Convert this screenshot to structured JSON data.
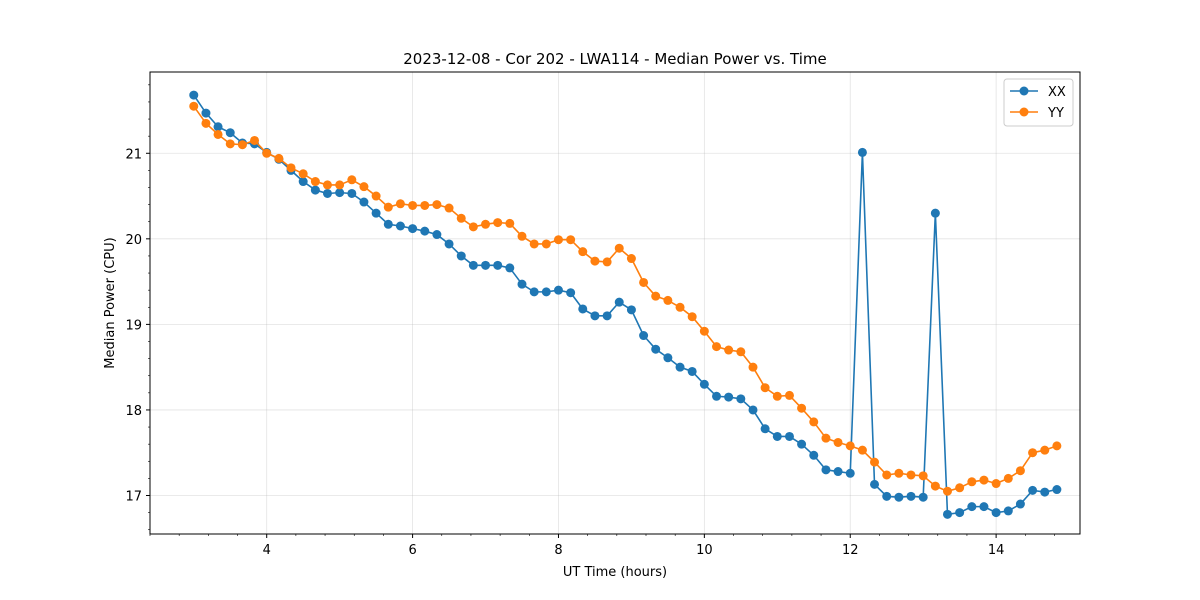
{
  "chart_data": {
    "type": "line",
    "title": "2023-12-08 - Cor 202 - LWA114 - Median Power vs. Time",
    "xlabel": "UT Time (hours)",
    "ylabel": "Median Power (CPU)",
    "xlim": [
      2.4,
      15.15
    ],
    "ylim": [
      16.55,
      21.95
    ],
    "xticks": [
      4,
      6,
      8,
      10,
      12,
      14
    ],
    "yticks": [
      17,
      18,
      19,
      20,
      21
    ],
    "grid": true,
    "legend_position": "top-right",
    "x": [
      3.0,
      3.167,
      3.333,
      3.5,
      3.667,
      3.833,
      4.0,
      4.167,
      4.333,
      4.5,
      4.667,
      4.833,
      5.0,
      5.167,
      5.333,
      5.5,
      5.667,
      5.833,
      6.0,
      6.167,
      6.333,
      6.5,
      6.667,
      6.833,
      7.0,
      7.167,
      7.333,
      7.5,
      7.667,
      7.833,
      8.0,
      8.167,
      8.333,
      8.5,
      8.667,
      8.833,
      9.0,
      9.167,
      9.333,
      9.5,
      9.667,
      9.833,
      10.0,
      10.167,
      10.333,
      10.5,
      10.667,
      10.833,
      11.0,
      11.167,
      11.333,
      11.5,
      11.667,
      11.833,
      12.0,
      12.167,
      12.333,
      12.5,
      12.667,
      12.833,
      13.0,
      13.167,
      13.333,
      13.5,
      13.667,
      13.833,
      14.0,
      14.167,
      14.333,
      14.5,
      14.667,
      14.833
    ],
    "series": [
      {
        "name": "XX",
        "color": "#1f77b4",
        "values": [
          21.68,
          21.47,
          21.31,
          21.24,
          21.12,
          21.11,
          21.01,
          20.93,
          20.8,
          20.67,
          20.57,
          20.53,
          20.54,
          20.53,
          20.43,
          20.3,
          20.17,
          20.15,
          20.12,
          20.09,
          20.05,
          19.94,
          19.8,
          19.69,
          19.69,
          19.69,
          19.66,
          19.47,
          19.38,
          19.38,
          19.4,
          19.37,
          19.18,
          19.1,
          19.1,
          19.26,
          19.17,
          18.87,
          18.71,
          18.61,
          18.5,
          18.45,
          18.3,
          18.16,
          18.15,
          18.13,
          18.0,
          17.78,
          17.69,
          17.69,
          17.6,
          17.47,
          17.3,
          17.28,
          17.26,
          21.01,
          17.13,
          16.99,
          16.98,
          16.99,
          16.98,
          20.3,
          16.78,
          16.8,
          16.87,
          16.87,
          16.8,
          16.82,
          16.9,
          17.06,
          17.04,
          17.07
        ]
      },
      {
        "name": "YY",
        "color": "#ff7f0e",
        "values": [
          21.55,
          21.35,
          21.22,
          21.11,
          21.1,
          21.15,
          21.0,
          20.94,
          20.83,
          20.76,
          20.67,
          20.63,
          20.63,
          20.69,
          20.61,
          20.5,
          20.37,
          20.41,
          20.39,
          20.39,
          20.4,
          20.36,
          20.24,
          20.14,
          20.17,
          20.19,
          20.18,
          20.03,
          19.94,
          19.94,
          19.99,
          19.99,
          19.85,
          19.74,
          19.73,
          19.89,
          19.77,
          19.49,
          19.33,
          19.28,
          19.2,
          19.09,
          18.92,
          18.74,
          18.7,
          18.68,
          18.5,
          18.26,
          18.16,
          18.17,
          18.02,
          17.86,
          17.67,
          17.62,
          17.58,
          17.53,
          17.39,
          17.24,
          17.26,
          17.24,
          17.23,
          17.11,
          17.05,
          17.09,
          17.16,
          17.18,
          17.14,
          17.2,
          17.29,
          17.5,
          17.53,
          17.58
        ]
      }
    ]
  }
}
